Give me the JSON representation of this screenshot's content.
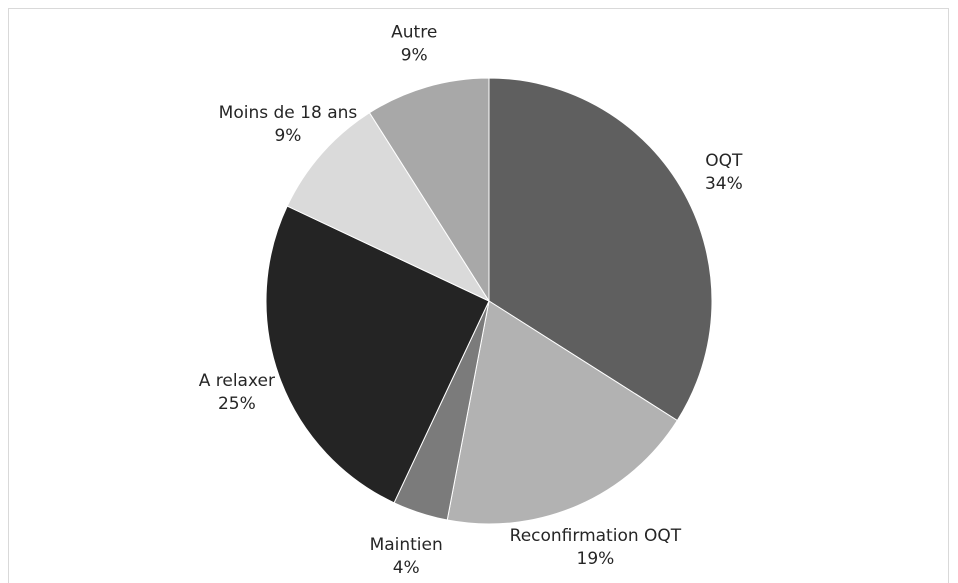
{
  "chart_data": {
    "type": "pie",
    "categories": [
      "OQT",
      "Reconfirmation OQT",
      "Maintien",
      "A relaxer",
      "Moins de 18 ans",
      "Autre"
    ],
    "values": [
      34,
      19,
      4,
      25,
      9,
      9
    ],
    "value_labels": [
      "34%",
      "19%",
      "4%",
      "25%",
      "9%",
      "9%"
    ],
    "colors": [
      "#5f5f5f",
      "#b2b2b2",
      "#7b7b7b",
      "#242424",
      "#dadada",
      "#a8a8a8"
    ]
  }
}
